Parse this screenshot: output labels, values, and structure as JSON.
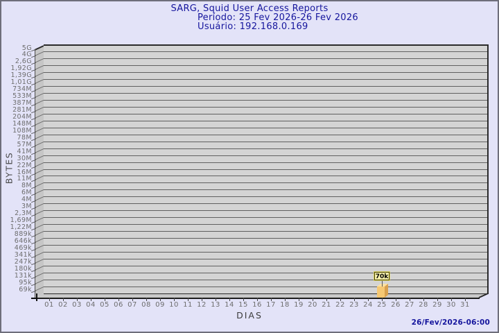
{
  "header": {
    "title": "SARG, Squid User Access Reports",
    "period_line": "Período: 25 Fev 2026-26 Fev 2026",
    "user_line": "Usuário: 192.168.0.169"
  },
  "chart_data": {
    "type": "bar",
    "style": "3d-bar",
    "title": "SARG, Squid User Access Reports",
    "subtitle": "Período: 25 Fev 2026-26 Fev 2026",
    "user": "Usuário: 192.168.0.169",
    "xlabel": "DIAS",
    "ylabel": "BYTES",
    "categories": [
      "01",
      "02",
      "03",
      "04",
      "05",
      "06",
      "07",
      "08",
      "09",
      "10",
      "11",
      "12",
      "13",
      "14",
      "15",
      "16",
      "17",
      "18",
      "19",
      "20",
      "21",
      "22",
      "23",
      "24",
      "25",
      "26",
      "27",
      "28",
      "29",
      "30",
      "31"
    ],
    "values": [
      0,
      0,
      0,
      0,
      0,
      0,
      0,
      0,
      0,
      0,
      0,
      0,
      0,
      0,
      0,
      0,
      0,
      0,
      0,
      0,
      0,
      0,
      0,
      0,
      70000,
      0,
      0,
      0,
      0,
      0,
      0
    ],
    "values_unit": "bytes",
    "bar_label": "70k",
    "y_scale": "logarithmic",
    "y_ticks": [
      "5G",
      "4G",
      "2,6G",
      "1,92G",
      "1,39G",
      "1,01G",
      "734M",
      "533M",
      "387M",
      "281M",
      "204M",
      "148M",
      "108M",
      "78M",
      "57M",
      "41M",
      "30M",
      "22M",
      "16M",
      "11M",
      "8M",
      "6M",
      "4M",
      "3M",
      "2,3M",
      "1,69M",
      "1,22M",
      "889k",
      "646k",
      "469k",
      "341k",
      "247k",
      "180k",
      "131k",
      "95k",
      "69k"
    ],
    "y_range": [
      "69k",
      "5G"
    ],
    "grid": "horizontal",
    "legend": "none"
  },
  "footer": {
    "timestamp": "26/Fev/2026-06:00"
  },
  "colors": {
    "background": "#e3e3f8",
    "frame_border": "#6e6e7a",
    "title_text": "#15159d",
    "plot_back": "#d4d4d4",
    "plot_wall": "#c6c6c6",
    "plot_floor": "#c9c9c9",
    "grid_line": "#606060",
    "tick_text": "#6d6d6d",
    "bar_front": "#f6c873",
    "bar_top": "#fbe0a0",
    "bar_side": "#d9a14e",
    "bar_label_bg": "#f8f2ac",
    "bar_label_border": "#4a4400",
    "timestamp_text": "#15159d"
  }
}
